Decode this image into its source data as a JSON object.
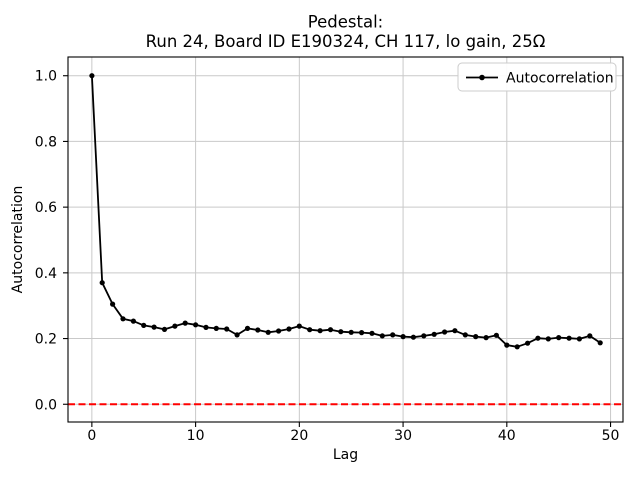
{
  "chart_data": {
    "type": "line",
    "title_lines": [
      "Pedestal:",
      "Run 24, Board ID E190324, CH 117, lo gain, 25Ω"
    ],
    "xlabel": "Lag",
    "ylabel": "Autocorrelation",
    "legend": {
      "label": "Autocorrelation",
      "position": "upper right"
    },
    "grid": true,
    "xlim": [
      -2.3,
      51.2
    ],
    "ylim": [
      -0.054,
      1.057
    ],
    "xticks": [
      0,
      10,
      20,
      30,
      40,
      50
    ],
    "yticks": [
      0.0,
      0.2,
      0.4,
      0.6,
      0.8,
      1.0
    ],
    "series": [
      {
        "name": "Autocorrelation",
        "color": "#000000",
        "marker": "point",
        "x": [
          0,
          1,
          2,
          3,
          4,
          5,
          6,
          7,
          8,
          9,
          10,
          11,
          12,
          13,
          14,
          15,
          16,
          17,
          18,
          19,
          20,
          21,
          22,
          23,
          24,
          25,
          26,
          27,
          28,
          29,
          30,
          31,
          32,
          33,
          34,
          35,
          36,
          37,
          38,
          39,
          40,
          41,
          42,
          43,
          44,
          45,
          46,
          47,
          48,
          49
        ],
        "y": [
          1.0,
          0.37,
          0.305,
          0.26,
          0.253,
          0.24,
          0.235,
          0.228,
          0.238,
          0.247,
          0.242,
          0.234,
          0.231,
          0.229,
          0.211,
          0.231,
          0.226,
          0.219,
          0.223,
          0.229,
          0.238,
          0.227,
          0.224,
          0.227,
          0.221,
          0.219,
          0.218,
          0.216,
          0.208,
          0.211,
          0.206,
          0.204,
          0.208,
          0.213,
          0.22,
          0.224,
          0.211,
          0.206,
          0.203,
          0.21,
          0.18,
          0.175,
          0.186,
          0.201,
          0.199,
          0.203,
          0.201,
          0.199,
          0.208,
          0.187
        ]
      }
    ],
    "reference_lines": [
      {
        "axis": "y",
        "value": 0.0,
        "color": "#ff0000",
        "style": "dashed"
      }
    ]
  },
  "colors": {
    "series_line": "#000000",
    "reference_line": "#ff0000",
    "grid_line": "#c9c9c9",
    "spine": "#000000",
    "background": "#ffffff",
    "legend_border": "#cccccc",
    "legend_fill": "#ffffff"
  }
}
